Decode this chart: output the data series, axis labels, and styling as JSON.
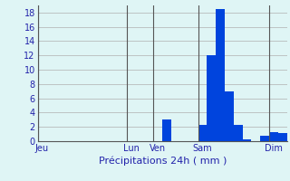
{
  "title": "",
  "xlabel": "Précipitations 24h ( mm )",
  "ylabel": "",
  "bar_color": "#0044dd",
  "background_color": "#dff5f5",
  "grid_color": "#b0b0b0",
  "text_color": "#2222aa",
  "ylim": [
    0,
    19
  ],
  "yticks": [
    0,
    2,
    4,
    6,
    8,
    10,
    12,
    14,
    16,
    18
  ],
  "num_bars": 28,
  "values": [
    0,
    0,
    0,
    0,
    0,
    0,
    0,
    0,
    0,
    0,
    0,
    0,
    0,
    0,
    3,
    0,
    0,
    0,
    2.3,
    12,
    18.5,
    7,
    2.3,
    0.3,
    0,
    0.8,
    1.3,
    1.1
  ],
  "day_labels": [
    "Jeu",
    "Lun",
    "Ven",
    "Sam",
    "Dim"
  ],
  "day_tick_positions": [
    0,
    10,
    13,
    18,
    26
  ],
  "day_line_positions": [
    -0.5,
    9.5,
    12.5,
    17.5,
    25.5
  ]
}
